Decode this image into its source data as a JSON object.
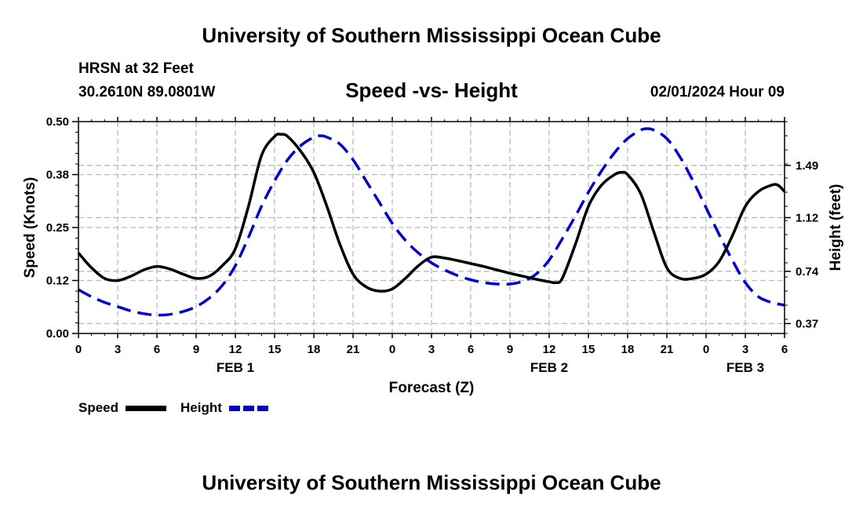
{
  "header": {
    "title": "University of Southern Mississippi Ocean Cube",
    "station": "HRSN at 32 Feet",
    "coords": "30.2610N  89.0801W",
    "subtitle": "Speed -vs- Height",
    "datetime": "02/01/2024 Hour 09"
  },
  "footer": {
    "title": "University of Southern Mississippi Ocean Cube"
  },
  "legend": [
    {
      "label": "Speed",
      "color": "#000000",
      "dash": "solid"
    },
    {
      "label": "Height",
      "color": "#0000cc",
      "dash": "dashed"
    }
  ],
  "chart_data": {
    "type": "line",
    "title": "Speed -vs- Height",
    "xlabel": "Forecast (Z)",
    "ylabel": "Speed (Knots)",
    "y2label": "Height (feet)",
    "x_range_hours": [
      0,
      54
    ],
    "x_tick_labels": [
      "0",
      "3",
      "6",
      "9",
      "12",
      "15",
      "18",
      "21",
      "0",
      "3",
      "6",
      "9",
      "12",
      "15",
      "18",
      "21",
      "0",
      "3",
      "6"
    ],
    "date_labels": [
      {
        "hour": 12,
        "label": "FEB 1"
      },
      {
        "hour": 36,
        "label": "FEB 2"
      },
      {
        "hour": 51,
        "label": "FEB 3"
      }
    ],
    "ylim": [
      0,
      0.5
    ],
    "y_ticks": [
      "0.00",
      "0.12",
      "0.25",
      "0.38",
      "0.50"
    ],
    "y_tick_values": [
      0,
      0.125,
      0.25,
      0.375,
      0.5
    ],
    "y2lim": [
      0.3,
      1.8
    ],
    "y2_ticks": [
      "0.37",
      "0.74",
      "1.12",
      "1.49"
    ],
    "y2_tick_values": [
      0.37,
      0.74,
      1.12,
      1.49
    ],
    "grid": true,
    "series": [
      {
        "name": "Speed",
        "axis": "left",
        "color": "#000000",
        "points": [
          [
            0,
            0.19
          ],
          [
            1,
            0.155
          ],
          [
            2,
            0.13
          ],
          [
            3,
            0.125
          ],
          [
            4,
            0.135
          ],
          [
            5,
            0.15
          ],
          [
            6,
            0.158
          ],
          [
            7,
            0.152
          ],
          [
            8,
            0.14
          ],
          [
            9,
            0.13
          ],
          [
            10,
            0.135
          ],
          [
            11,
            0.16
          ],
          [
            12,
            0.2
          ],
          [
            13,
            0.3
          ],
          [
            14,
            0.42
          ],
          [
            15,
            0.465
          ],
          [
            15.5,
            0.47
          ],
          [
            16,
            0.465
          ],
          [
            17,
            0.43
          ],
          [
            18,
            0.38
          ],
          [
            19,
            0.3
          ],
          [
            20,
            0.21
          ],
          [
            21,
            0.14
          ],
          [
            22,
            0.11
          ],
          [
            23,
            0.1
          ],
          [
            24,
            0.105
          ],
          [
            25,
            0.13
          ],
          [
            26,
            0.16
          ],
          [
            27,
            0.18
          ],
          [
            28,
            0.178
          ],
          [
            29,
            0.172
          ],
          [
            30,
            0.165
          ],
          [
            31,
            0.158
          ],
          [
            32,
            0.15
          ],
          [
            33,
            0.142
          ],
          [
            34,
            0.135
          ],
          [
            35,
            0.128
          ],
          [
            36,
            0.122
          ],
          [
            36.5,
            0.12
          ],
          [
            37,
            0.13
          ],
          [
            38,
            0.21
          ],
          [
            39,
            0.3
          ],
          [
            40,
            0.35
          ],
          [
            41,
            0.375
          ],
          [
            41.5,
            0.38
          ],
          [
            42,
            0.375
          ],
          [
            43,
            0.33
          ],
          [
            44,
            0.24
          ],
          [
            45,
            0.155
          ],
          [
            46,
            0.13
          ],
          [
            47,
            0.13
          ],
          [
            48,
            0.14
          ],
          [
            49,
            0.17
          ],
          [
            50,
            0.23
          ],
          [
            51,
            0.3
          ],
          [
            52,
            0.335
          ],
          [
            53,
            0.35
          ],
          [
            53.5,
            0.35
          ],
          [
            54,
            0.335
          ]
        ]
      },
      {
        "name": "Height",
        "axis": "right",
        "color": "#0000cc",
        "points": [
          [
            0,
            0.61
          ],
          [
            1,
            0.56
          ],
          [
            2,
            0.52
          ],
          [
            3,
            0.49
          ],
          [
            4,
            0.46
          ],
          [
            5,
            0.44
          ],
          [
            6,
            0.43
          ],
          [
            7,
            0.435
          ],
          [
            8,
            0.455
          ],
          [
            9,
            0.49
          ],
          [
            10,
            0.55
          ],
          [
            11,
            0.64
          ],
          [
            12,
            0.78
          ],
          [
            13,
            0.98
          ],
          [
            14,
            1.2
          ],
          [
            15,
            1.38
          ],
          [
            16,
            1.53
          ],
          [
            17,
            1.63
          ],
          [
            18,
            1.69
          ],
          [
            18.5,
            1.7
          ],
          [
            19,
            1.69
          ],
          [
            20,
            1.64
          ],
          [
            21,
            1.53
          ],
          [
            22,
            1.38
          ],
          [
            23,
            1.23
          ],
          [
            24,
            1.08
          ],
          [
            25,
            0.96
          ],
          [
            26,
            0.87
          ],
          [
            27,
            0.8
          ],
          [
            28,
            0.75
          ],
          [
            29,
            0.71
          ],
          [
            30,
            0.68
          ],
          [
            31,
            0.66
          ],
          [
            32,
            0.65
          ],
          [
            33,
            0.65
          ],
          [
            34,
            0.67
          ],
          [
            35,
            0.72
          ],
          [
            36,
            0.82
          ],
          [
            37,
            0.97
          ],
          [
            38,
            1.13
          ],
          [
            39,
            1.3
          ],
          [
            40,
            1.45
          ],
          [
            41,
            1.58
          ],
          [
            42,
            1.68
          ],
          [
            43,
            1.74
          ],
          [
            43.5,
            1.75
          ],
          [
            44,
            1.74
          ],
          [
            45,
            1.68
          ],
          [
            46,
            1.55
          ],
          [
            47,
            1.38
          ],
          [
            48,
            1.19
          ],
          [
            49,
            1.0
          ],
          [
            50,
            0.82
          ],
          [
            51,
            0.66
          ],
          [
            52,
            0.56
          ],
          [
            53,
            0.52
          ],
          [
            54,
            0.5
          ]
        ]
      }
    ]
  }
}
